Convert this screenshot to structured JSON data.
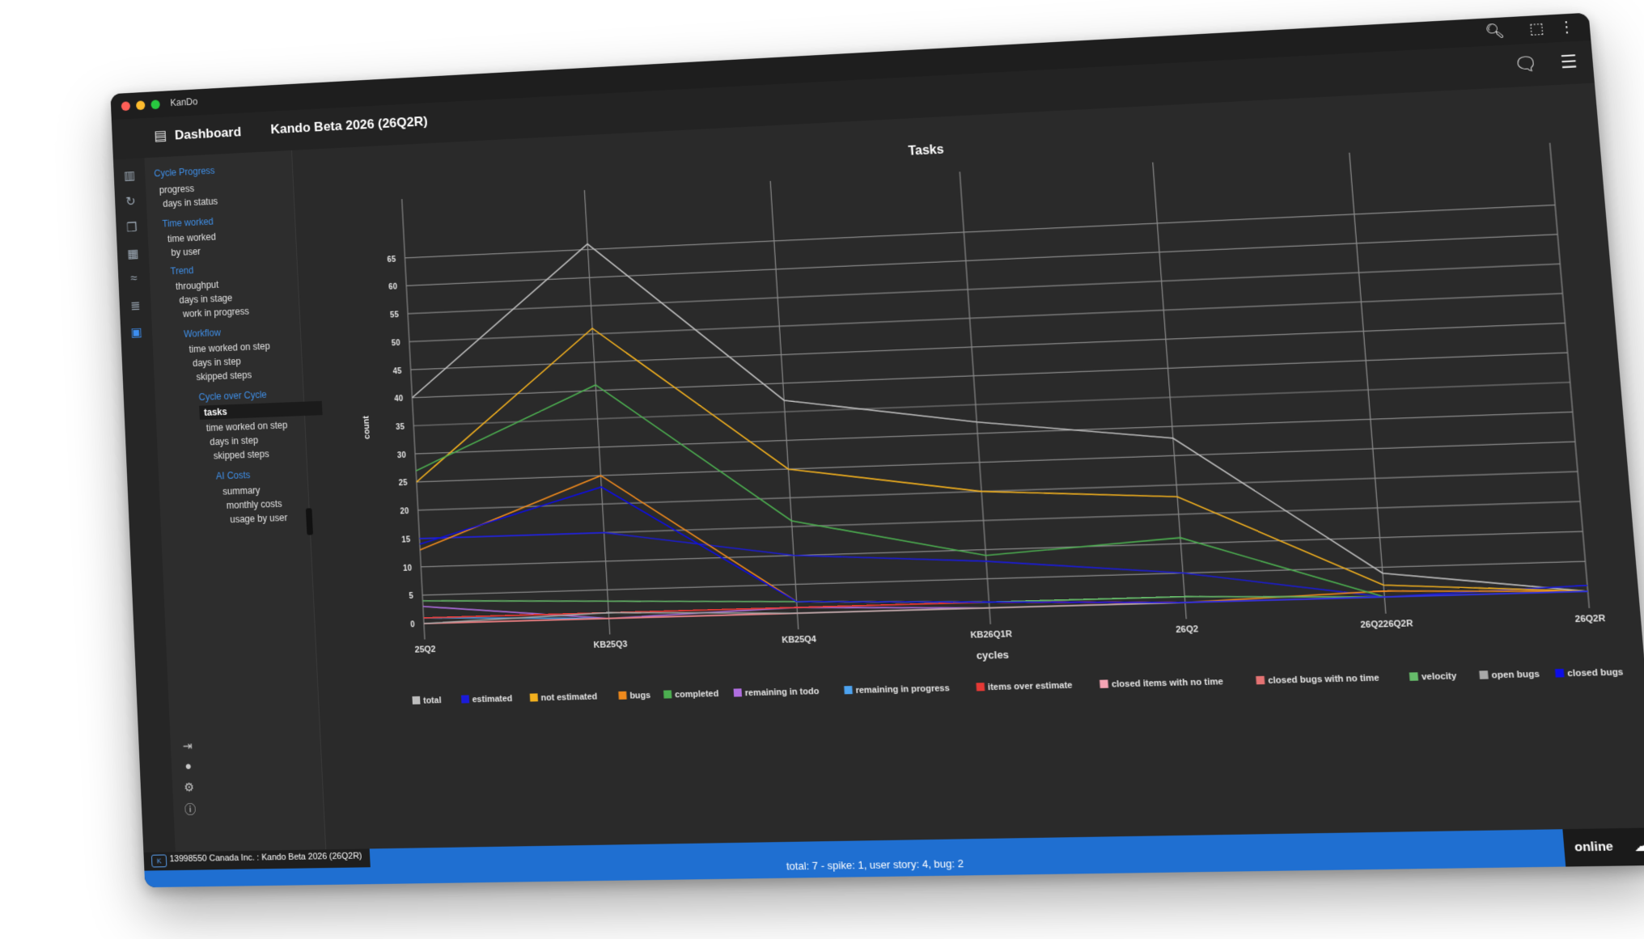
{
  "window": {
    "app_title": "KanDo"
  },
  "header": {
    "dashboard_label": "Dashboard",
    "project_title": "Kando Beta 2026 (26Q2R)"
  },
  "sidebar": {
    "sections": [
      {
        "title": "Cycle Progress",
        "items": [
          "progress",
          "days in status"
        ]
      },
      {
        "title": "Time worked",
        "items": [
          "time worked",
          "by user"
        ]
      },
      {
        "title": "Trend",
        "items": [
          "throughput",
          "days in stage",
          "work in progress"
        ]
      },
      {
        "title": "Workflow",
        "items": [
          "time worked on step",
          "days in step",
          "skipped steps"
        ]
      },
      {
        "title": "Cycle over Cycle",
        "items": [
          "tasks",
          "time worked on step",
          "days in step",
          "skipped steps"
        ]
      },
      {
        "title": "AI Costs",
        "items": [
          "summary",
          "monthly costs",
          "usage by user"
        ]
      }
    ],
    "selected_item": "tasks"
  },
  "icons": {
    "titlebar": [
      "zoom-icon",
      "extension-icon",
      "kebab-menu-icon"
    ],
    "header_right": [
      "chat-icon",
      "layers-icon"
    ],
    "rail": [
      "board-icon",
      "cycle-icon",
      "copy-icon",
      "calendar-icon",
      "flow-icon",
      "search-list-icon",
      "dashboard-icon"
    ],
    "sidebar_bottom": [
      "logout-icon",
      "user-avatar-icon",
      "settings-icon",
      "info-icon"
    ],
    "status": "cloud-icon"
  },
  "statusbar": {
    "project_info": "13998550 Canada Inc. : Kando Beta 2026 (26Q2R)",
    "summary": "total: 7 - spike: 1, user story: 4, bug: 2",
    "connection": "online"
  },
  "colors": {
    "accent": "#3f8fe8",
    "status_bar": "#1f6fd1",
    "background": "#2a2a2a"
  },
  "chart_data": {
    "type": "line",
    "title": "Tasks",
    "xlabel": "cycles",
    "ylabel": "count",
    "ylim": [
      0,
      70
    ],
    "yticks": [
      0,
      5,
      10,
      15,
      20,
      25,
      30,
      35,
      40,
      45,
      50,
      55,
      60,
      65
    ],
    "categories": [
      "25Q2",
      "KB25Q3",
      "KB25Q4",
      "KB26Q1R",
      "26Q2",
      "26Q226Q2R",
      "26Q2R"
    ],
    "grid": true,
    "legend_position": "bottom",
    "series": [
      {
        "name": "total",
        "color": "#bdbdbd",
        "values": [
          40,
          66,
          37,
          32,
          28,
          4,
          0
        ]
      },
      {
        "name": "estimated",
        "color": "#1b1bd9",
        "values": [
          15,
          15,
          10,
          8,
          5,
          0,
          1
        ]
      },
      {
        "name": "not estimated",
        "color": "#f2b01e",
        "values": [
          25,
          51,
          25,
          20,
          18,
          2,
          0
        ]
      },
      {
        "name": "bugs",
        "color": "#f08a1c",
        "values": [
          13,
          25,
          2,
          1,
          0,
          1,
          0
        ]
      },
      {
        "name": "completed",
        "color": "#4caf50",
        "values": [
          27,
          41,
          16,
          9,
          11,
          0,
          0
        ]
      },
      {
        "name": "remaining in todo",
        "color": "#b06ee0",
        "values": [
          3,
          0,
          1,
          0,
          0,
          0,
          0
        ]
      },
      {
        "name": "remaining in progress",
        "color": "#4da3f0",
        "values": [
          1,
          0,
          0,
          0,
          0,
          0,
          0
        ]
      },
      {
        "name": "items over estimate",
        "color": "#e53935",
        "values": [
          1,
          1,
          1,
          1,
          0,
          0,
          0
        ]
      },
      {
        "name": "closed items with no time",
        "color": "#f6a5b5",
        "values": [
          0,
          0,
          0,
          0,
          0,
          0,
          0
        ]
      },
      {
        "name": "closed bugs with no time",
        "color": "#e57373",
        "values": [
          0,
          0,
          0,
          0,
          0,
          0,
          0
        ]
      },
      {
        "name": "velocity",
        "color": "#66bb6a",
        "values": [
          4,
          3,
          2,
          1,
          1,
          0,
          0
        ]
      },
      {
        "name": "open bugs",
        "color": "#a8a8a8",
        "values": [
          0,
          1,
          0,
          0,
          0,
          0,
          0
        ]
      },
      {
        "name": "closed bugs",
        "color": "#0d0de6",
        "values": [
          14,
          23,
          2,
          1,
          0,
          0,
          0
        ]
      }
    ]
  }
}
